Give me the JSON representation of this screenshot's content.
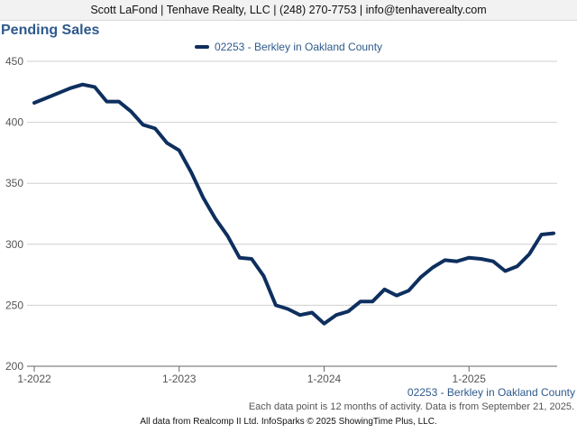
{
  "header": {
    "contact": "Scott LaFond | Tenhave Realty, LLC | (248) 270-7753 | info@tenhaverealty.com"
  },
  "notes": {
    "series_caption": "02253 - Berkley in Oakland County",
    "data_note": "Each data point is 12 months of activity. Data is from September 21, 2025.",
    "footer": "All data from Realcomp II Ltd. InfoSparks © 2025 ShowingTime Plus, LLC."
  },
  "colors": {
    "series_line": "#0e2f5e",
    "title": "#2e5a8c",
    "grid": "#cfcfcf"
  },
  "chart_data": {
    "type": "line",
    "title": "Pending Sales",
    "xlabel": "",
    "ylabel": "",
    "ylim": [
      200,
      450
    ],
    "yticks": [
      200,
      250,
      300,
      350,
      400,
      450
    ],
    "x_range": [
      0,
      43
    ],
    "xticks": [
      {
        "label": "1-2022",
        "index": 0
      },
      {
        "label": "1-2023",
        "index": 12
      },
      {
        "label": "1-2024",
        "index": 24
      },
      {
        "label": "1-2025",
        "index": 36
      }
    ],
    "x_start": "2022-01",
    "x_interval": "month",
    "grid": true,
    "legend_position": "top",
    "series": [
      {
        "name": "02253 - Berkley in Oakland County",
        "values": [
          416,
          420,
          424,
          428,
          431,
          429,
          417,
          417,
          409,
          398,
          395,
          383,
          377,
          359,
          338,
          321,
          307,
          289,
          288,
          274,
          250,
          247,
          242,
          244,
          235,
          242,
          245,
          253,
          253,
          263,
          258,
          262,
          273,
          281,
          287,
          286,
          289,
          288,
          286,
          278,
          282,
          292,
          308,
          309
        ]
      }
    ]
  }
}
